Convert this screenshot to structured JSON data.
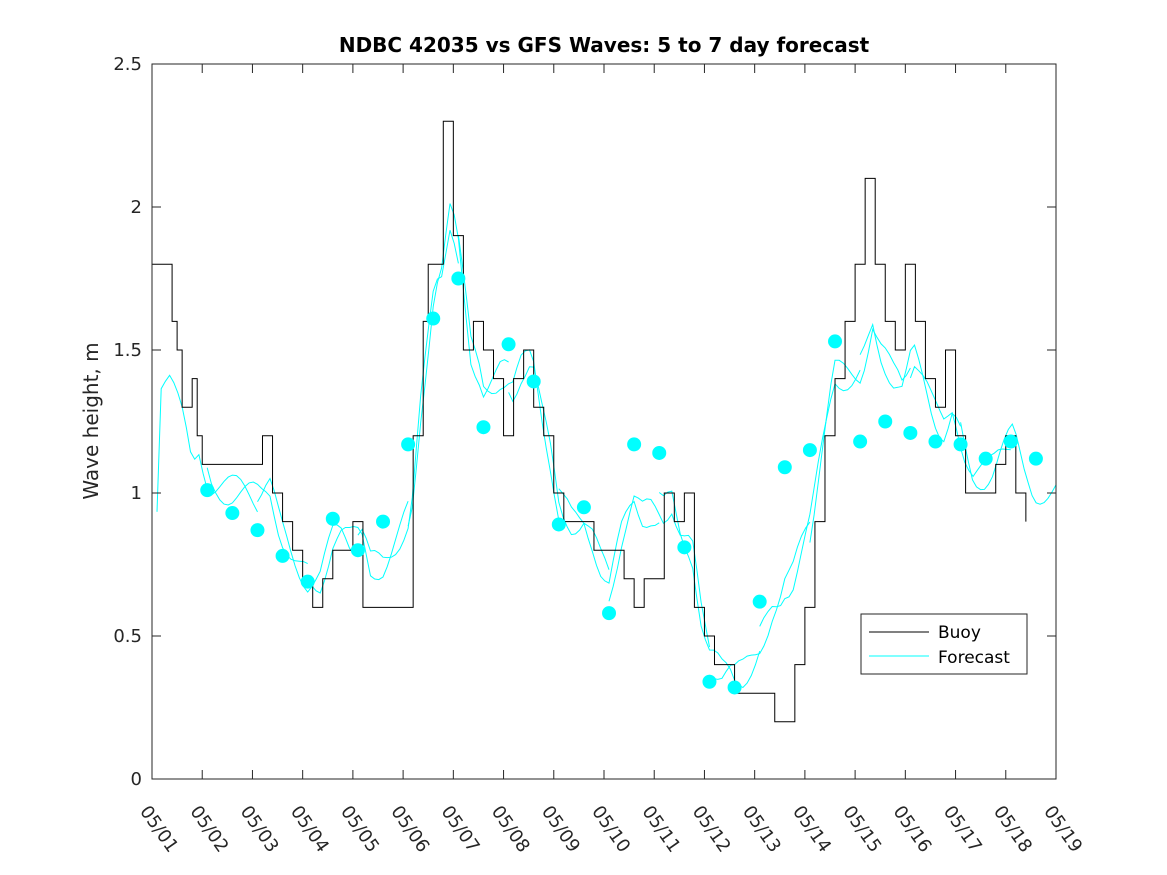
{
  "chart_data": {
    "type": "line",
    "title": "NDBC 42035 vs GFS Waves: 5 to 7 day forecast",
    "xlabel": "",
    "ylabel": "Wave height, m",
    "xlim": [
      1,
      19
    ],
    "ylim": [
      0,
      2.5
    ],
    "grid": false,
    "legend_position": "lower-right",
    "x_tick_labels": [
      "05/01",
      "05/02",
      "05/03",
      "05/04",
      "05/05",
      "05/06",
      "05/07",
      "05/08",
      "05/09",
      "05/10",
      "05/11",
      "05/12",
      "05/13",
      "05/14",
      "05/15",
      "05/16",
      "05/17",
      "05/18",
      "05/19"
    ],
    "y_tick_labels": [
      "0",
      "0.5",
      "1",
      "1.5",
      "2",
      "2.5"
    ],
    "colors": {
      "buoy": "#000000",
      "forecast": "#00ffff"
    },
    "series": [
      {
        "name": "Buoy",
        "x": [
          1.0,
          1.2,
          1.4,
          1.5,
          1.6,
          1.7,
          1.8,
          1.9,
          2.0,
          2.2,
          2.4,
          2.6,
          2.8,
          3.0,
          3.2,
          3.4,
          3.6,
          3.8,
          4.0,
          4.2,
          4.4,
          4.6,
          4.8,
          5.0,
          5.2,
          5.4,
          5.6,
          5.8,
          6.0,
          6.2,
          6.4,
          6.5,
          6.6,
          6.8,
          7.0,
          7.2,
          7.4,
          7.6,
          7.8,
          8.0,
          8.2,
          8.4,
          8.6,
          8.8,
          9.0,
          9.2,
          9.4,
          9.6,
          9.8,
          10.0,
          10.2,
          10.4,
          10.6,
          10.8,
          11.0,
          11.2,
          11.4,
          11.6,
          11.8,
          12.0,
          12.2,
          12.4,
          12.6,
          12.8,
          13.0,
          13.2,
          13.4,
          13.6,
          13.8,
          14.0,
          14.2,
          14.4,
          14.6,
          14.8,
          15.0,
          15.2,
          15.4,
          15.6,
          15.8,
          16.0,
          16.2,
          16.4,
          16.6,
          16.8,
          17.0,
          17.2,
          17.4,
          17.6,
          17.8,
          18.0,
          18.2,
          18.4
        ],
        "y": [
          1.8,
          1.8,
          1.6,
          1.5,
          1.3,
          1.3,
          1.4,
          1.2,
          1.1,
          1.1,
          1.1,
          1.1,
          1.1,
          1.1,
          1.2,
          1.0,
          0.9,
          0.8,
          0.7,
          0.6,
          0.7,
          0.8,
          0.8,
          0.9,
          0.6,
          0.6,
          0.6,
          0.6,
          0.6,
          1.2,
          1.6,
          1.8,
          1.8,
          2.3,
          1.9,
          1.5,
          1.6,
          1.5,
          1.4,
          1.2,
          1.4,
          1.5,
          1.3,
          1.2,
          1.0,
          0.9,
          0.9,
          0.9,
          0.8,
          0.8,
          0.8,
          0.7,
          0.6,
          0.7,
          0.7,
          1.0,
          0.9,
          1.0,
          0.6,
          0.5,
          0.4,
          0.4,
          0.3,
          0.3,
          0.3,
          0.3,
          0.2,
          0.2,
          0.4,
          0.6,
          0.9,
          1.2,
          1.4,
          1.6,
          1.8,
          2.1,
          1.8,
          1.6,
          1.5,
          1.8,
          1.6,
          1.4,
          1.3,
          1.5,
          1.2,
          1.0,
          1.0,
          1.0,
          1.1,
          1.2,
          1.0,
          0.9
        ]
      },
      {
        "name": "Forecast",
        "x": [
          2.1,
          2.6,
          3.1,
          3.6,
          4.1,
          4.6,
          5.1,
          5.6,
          6.1,
          6.6,
          7.1,
          7.6,
          8.1,
          8.6,
          9.1,
          9.6,
          10.1,
          10.6,
          11.1,
          11.6,
          12.1,
          12.6,
          13.1,
          13.6,
          14.1,
          14.6,
          15.1,
          15.6,
          16.1,
          16.6,
          17.1,
          17.6,
          18.1,
          18.6
        ],
        "y": [
          1.01,
          0.93,
          0.87,
          0.78,
          0.69,
          0.91,
          0.8,
          0.9,
          1.17,
          1.61,
          1.75,
          1.23,
          1.52,
          1.39,
          0.89,
          0.95,
          0.58,
          1.17,
          1.14,
          0.81,
          0.34,
          0.32,
          0.62,
          1.09,
          1.15,
          1.53,
          1.18,
          1.25,
          1.21,
          1.18,
          1.17,
          1.12,
          1.18,
          1.12
        ]
      }
    ]
  }
}
